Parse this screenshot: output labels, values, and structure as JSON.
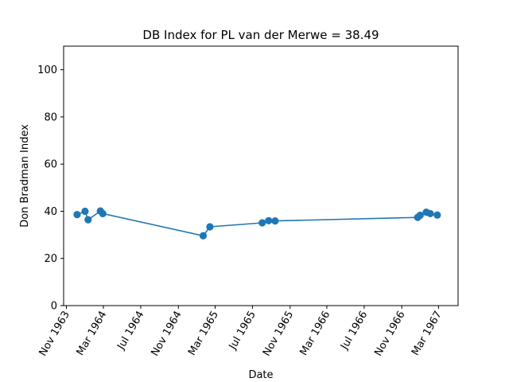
{
  "chart_data": {
    "type": "line",
    "title": "DB Index for PL van der Merwe = 38.49",
    "xlabel": "Date",
    "ylabel": "Don Bradman Index",
    "ylim": [
      0,
      110
    ],
    "yticks": [
      0,
      20,
      40,
      60,
      80,
      100
    ],
    "xlim": [
      "1963-10-23",
      "1967-05-04"
    ],
    "xticks": [
      {
        "date": "1963-11-01",
        "label": "Nov 1963"
      },
      {
        "date": "1964-03-01",
        "label": "Mar 1964"
      },
      {
        "date": "1964-07-01",
        "label": "Jul 1964"
      },
      {
        "date": "1964-11-01",
        "label": "Nov 1964"
      },
      {
        "date": "1965-03-01",
        "label": "Mar 1965"
      },
      {
        "date": "1965-07-01",
        "label": "Jul 1965"
      },
      {
        "date": "1965-11-01",
        "label": "Nov 1965"
      },
      {
        "date": "1966-03-01",
        "label": "Mar 1966"
      },
      {
        "date": "1966-07-01",
        "label": "Jul 1966"
      },
      {
        "date": "1966-11-01",
        "label": "Nov 1966"
      },
      {
        "date": "1967-03-01",
        "label": "Mar 1967"
      }
    ],
    "grid": false,
    "color": "#1f77b4",
    "series": [
      {
        "name": "DB Index",
        "points": [
          {
            "date": "1963-12-06",
            "value": 38.6
          },
          {
            "date": "1964-01-01",
            "value": 40.0
          },
          {
            "date": "1964-01-11",
            "value": 36.4
          },
          {
            "date": "1964-02-20",
            "value": 40.1
          },
          {
            "date": "1964-02-28",
            "value": 39.0
          },
          {
            "date": "1965-01-21",
            "value": 29.6
          },
          {
            "date": "1965-02-12",
            "value": 33.4
          },
          {
            "date": "1965-08-02",
            "value": 35.1
          },
          {
            "date": "1965-08-23",
            "value": 36.0
          },
          {
            "date": "1965-09-13",
            "value": 35.9
          },
          {
            "date": "1966-12-23",
            "value": 37.4
          },
          {
            "date": "1966-12-31",
            "value": 38.3
          },
          {
            "date": "1967-01-20",
            "value": 39.6
          },
          {
            "date": "1967-02-02",
            "value": 39.0
          },
          {
            "date": "1967-02-25",
            "value": 38.4
          }
        ]
      }
    ]
  }
}
